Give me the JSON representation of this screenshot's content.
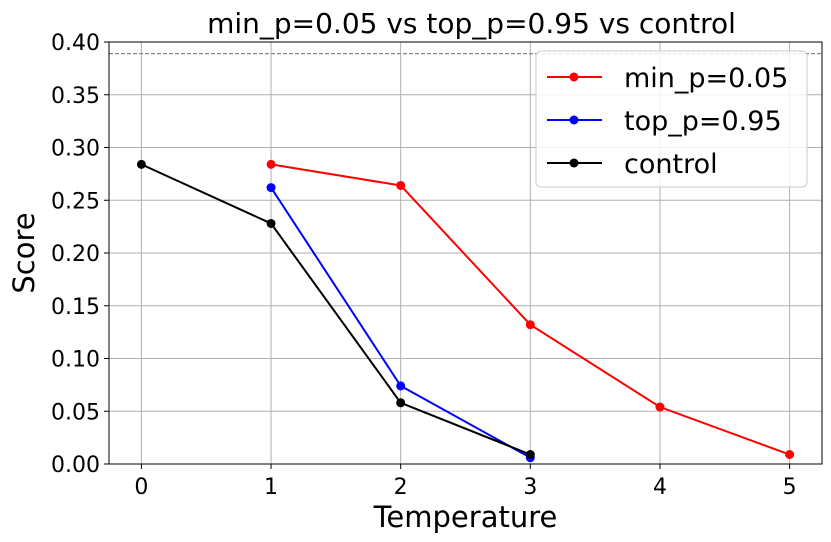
{
  "chart_data": {
    "type": "line",
    "title": "min_p=0.05 vs top_p=0.95 vs control",
    "xlabel": "Temperature",
    "ylabel": "Score",
    "xlim": [
      -0.25,
      5.25
    ],
    "ylim": [
      0.0,
      0.4
    ],
    "xticks": [
      0,
      1,
      2,
      3,
      4,
      5
    ],
    "xtick_labels": [
      "0",
      "1",
      "2",
      "3",
      "4",
      "5"
    ],
    "yticks": [
      0.0,
      0.05,
      0.1,
      0.15,
      0.2,
      0.25,
      0.3,
      0.35,
      0.4
    ],
    "ytick_labels": [
      "0.00",
      "0.05",
      "0.10",
      "0.15",
      "0.20",
      "0.25",
      "0.30",
      "0.35",
      "0.40"
    ],
    "grid": true,
    "reference_line": {
      "y": 0.389,
      "style": "dashed",
      "color": "#888888"
    },
    "legend_position": "top-right",
    "series": [
      {
        "name": "min_p=0.05",
        "color": "#ff0000",
        "x": [
          1,
          2,
          3,
          4,
          5
        ],
        "y": [
          0.284,
          0.264,
          0.132,
          0.054,
          0.009
        ]
      },
      {
        "name": "top_p=0.95",
        "color": "#0000ff",
        "x": [
          1,
          2,
          3
        ],
        "y": [
          0.262,
          0.074,
          0.006
        ]
      },
      {
        "name": "control",
        "color": "#000000",
        "x": [
          0,
          1,
          2,
          3
        ],
        "y": [
          0.284,
          0.228,
          0.058,
          0.009
        ]
      }
    ]
  }
}
